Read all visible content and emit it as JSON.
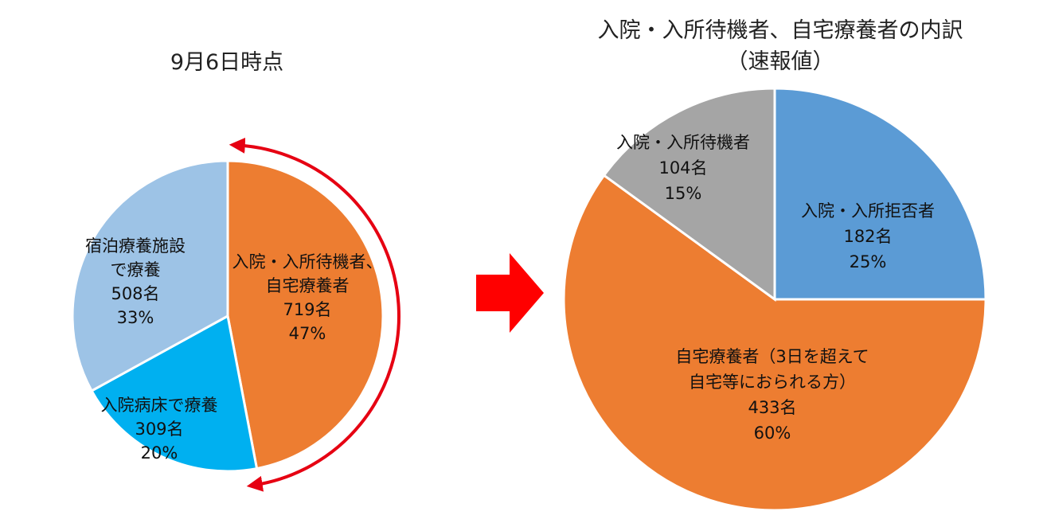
{
  "chart_data": [
    {
      "type": "pie",
      "title": "9月6日時点",
      "slices": [
        {
          "label": [
            "入院・入所待機者、",
            "自宅療養者"
          ],
          "count": "719名",
          "percent": "47%",
          "value": 47,
          "color": "#ed7d31"
        },
        {
          "label": [
            "入院病床で療養"
          ],
          "count": "309名",
          "percent": "20%",
          "value": 20,
          "color": "#00b0f0"
        },
        {
          "label": [
            "宿泊療養施設",
            "で療養"
          ],
          "count": "508名",
          "percent": "33%",
          "value": 33,
          "color": "#9dc3e6"
        }
      ]
    },
    {
      "type": "pie",
      "title": [
        "入院・入所待機者、自宅療養者の内訳",
        "（速報値）"
      ],
      "slices": [
        {
          "label": [
            "入院・入所拒否者"
          ],
          "count": "182名",
          "percent": "25%",
          "value": 25,
          "color": "#5b9bd5"
        },
        {
          "label": [
            "自宅療養者（3日を超えて",
            "自宅等におられる方）"
          ],
          "count": "433名",
          "percent": "60%",
          "value": 60,
          "color": "#ed7d31"
        },
        {
          "label": [
            "入院・入所待機者"
          ],
          "count": "104名",
          "percent": "15%",
          "value": 15,
          "color": "#a5a5a5"
        }
      ]
    }
  ],
  "colors": {
    "arrow": "#ff0000",
    "bracket_arrow": "#e60012"
  }
}
